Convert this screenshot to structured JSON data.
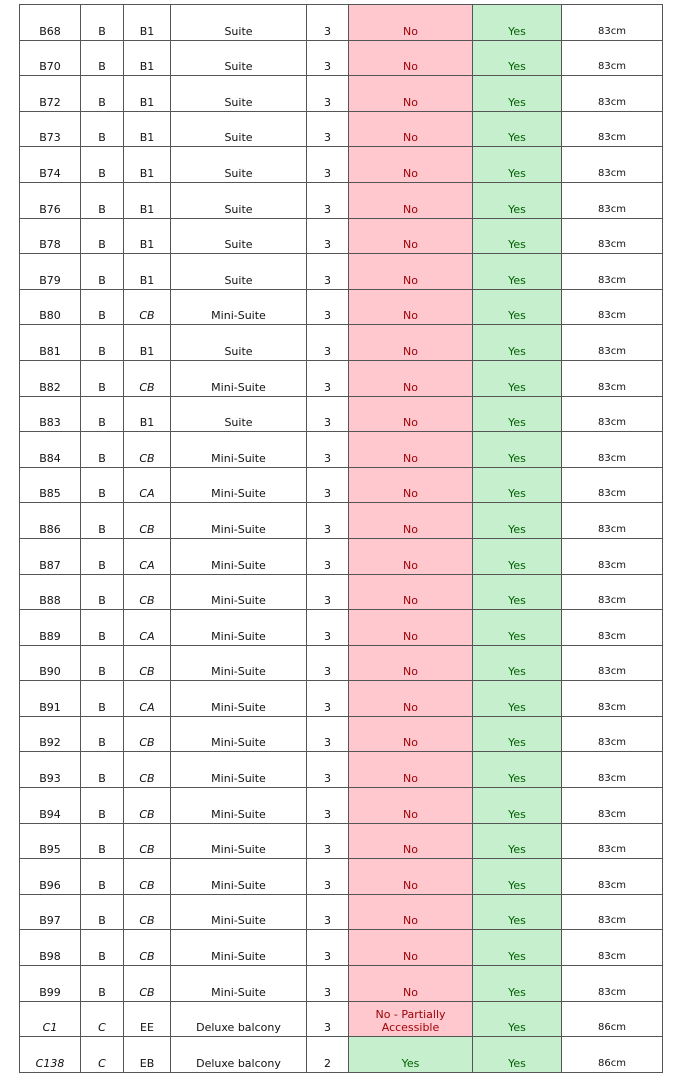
{
  "colors": {
    "no_bg": "#ffc7ce",
    "no_text": "#9c0006",
    "yes_bg": "#c6efce",
    "yes_text": "#006100"
  },
  "rows": [
    [
      "B68",
      "B",
      "B1",
      "Suite",
      "3",
      "No",
      "Yes",
      "83cm"
    ],
    [
      "B70",
      "B",
      "B1",
      "Suite",
      "3",
      "No",
      "Yes",
      "83cm"
    ],
    [
      "B72",
      "B",
      "B1",
      "Suite",
      "3",
      "No",
      "Yes",
      "83cm"
    ],
    [
      "B73",
      "B",
      "B1",
      "Suite",
      "3",
      "No",
      "Yes",
      "83cm"
    ],
    [
      "B74",
      "B",
      "B1",
      "Suite",
      "3",
      "No",
      "Yes",
      "83cm"
    ],
    [
      "B76",
      "B",
      "B1",
      "Suite",
      "3",
      "No",
      "Yes",
      "83cm"
    ],
    [
      "B78",
      "B",
      "B1",
      "Suite",
      "3",
      "No",
      "Yes",
      "83cm"
    ],
    [
      "B79",
      "B",
      "B1",
      "Suite",
      "3",
      "No",
      "Yes",
      "83cm"
    ],
    [
      "B80",
      "B",
      "CB",
      "Mini-Suite",
      "3",
      "No",
      "Yes",
      "83cm"
    ],
    [
      "B81",
      "B",
      "B1",
      "Suite",
      "3",
      "No",
      "Yes",
      "83cm"
    ],
    [
      "B82",
      "B",
      "CB",
      "Mini-Suite",
      "3",
      "No",
      "Yes",
      "83cm"
    ],
    [
      "B83",
      "B",
      "B1",
      "Suite",
      "3",
      "No",
      "Yes",
      "83cm"
    ],
    [
      "B84",
      "B",
      "CB",
      "Mini-Suite",
      "3",
      "No",
      "Yes",
      "83cm"
    ],
    [
      "B85",
      "B",
      "CA",
      "Mini-Suite",
      "3",
      "No",
      "Yes",
      "83cm"
    ],
    [
      "B86",
      "B",
      "CB",
      "Mini-Suite",
      "3",
      "No",
      "Yes",
      "83cm"
    ],
    [
      "B87",
      "B",
      "CA",
      "Mini-Suite",
      "3",
      "No",
      "Yes",
      "83cm"
    ],
    [
      "B88",
      "B",
      "CB",
      "Mini-Suite",
      "3",
      "No",
      "Yes",
      "83cm"
    ],
    [
      "B89",
      "B",
      "CA",
      "Mini-Suite",
      "3",
      "No",
      "Yes",
      "83cm"
    ],
    [
      "B90",
      "B",
      "CB",
      "Mini-Suite",
      "3",
      "No",
      "Yes",
      "83cm"
    ],
    [
      "B91",
      "B",
      "CA",
      "Mini-Suite",
      "3",
      "No",
      "Yes",
      "83cm"
    ],
    [
      "B92",
      "B",
      "CB",
      "Mini-Suite",
      "3",
      "No",
      "Yes",
      "83cm"
    ],
    [
      "B93",
      "B",
      "CB",
      "Mini-Suite",
      "3",
      "No",
      "Yes",
      "83cm"
    ],
    [
      "B94",
      "B",
      "CB",
      "Mini-Suite",
      "3",
      "No",
      "Yes",
      "83cm"
    ],
    [
      "B95",
      "B",
      "CB",
      "Mini-Suite",
      "3",
      "No",
      "Yes",
      "83cm"
    ],
    [
      "B96",
      "B",
      "CB",
      "Mini-Suite",
      "3",
      "No",
      "Yes",
      "83cm"
    ],
    [
      "B97",
      "B",
      "CB",
      "Mini-Suite",
      "3",
      "No",
      "Yes",
      "83cm"
    ],
    [
      "B98",
      "B",
      "CB",
      "Mini-Suite",
      "3",
      "No",
      "Yes",
      "83cm"
    ],
    [
      "B99",
      "B",
      "CB",
      "Mini-Suite",
      "3",
      "No",
      "Yes",
      "83cm"
    ],
    [
      "C1",
      "C",
      "EE",
      "Deluxe balcony",
      "3",
      "No - Partially Accessible",
      "Yes",
      "86cm"
    ],
    [
      "C138",
      "C",
      "EB",
      "Deluxe balcony",
      "2",
      "Yes",
      "Yes",
      "86cm"
    ]
  ]
}
